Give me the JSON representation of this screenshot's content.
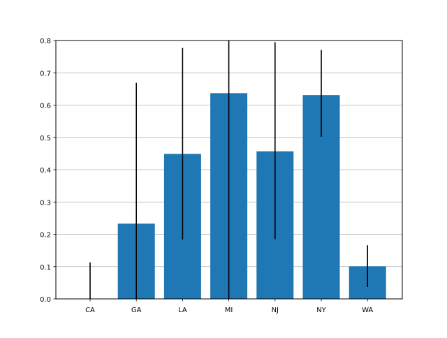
{
  "chart_data": {
    "type": "bar",
    "title": "",
    "xlabel": "",
    "ylabel": "",
    "categories": [
      "CA",
      "GA",
      "LA",
      "MI",
      "NJ",
      "NY",
      "WA"
    ],
    "values": [
      0.0,
      0.233,
      0.449,
      0.637,
      0.457,
      0.631,
      0.101
    ],
    "error_low": [
      0.0,
      0.0,
      0.184,
      0.0,
      0.185,
      0.502,
      0.037
    ],
    "error_high": [
      0.113,
      0.669,
      0.777,
      0.8,
      0.795,
      0.771,
      0.166
    ],
    "ylim": [
      0,
      0.8
    ],
    "yticks": [
      0.0,
      0.1,
      0.2,
      0.3,
      0.4,
      0.5,
      0.6,
      0.7,
      0.8
    ],
    "ytick_labels": [
      "0.0",
      "0.1",
      "0.2",
      "0.3",
      "0.4",
      "0.5",
      "0.6",
      "0.7",
      "0.8"
    ],
    "grid": "y",
    "colors": {
      "bar": "#1f77b4",
      "error": "#000000",
      "grid": "#b0b0b0",
      "axis": "#000000"
    }
  }
}
